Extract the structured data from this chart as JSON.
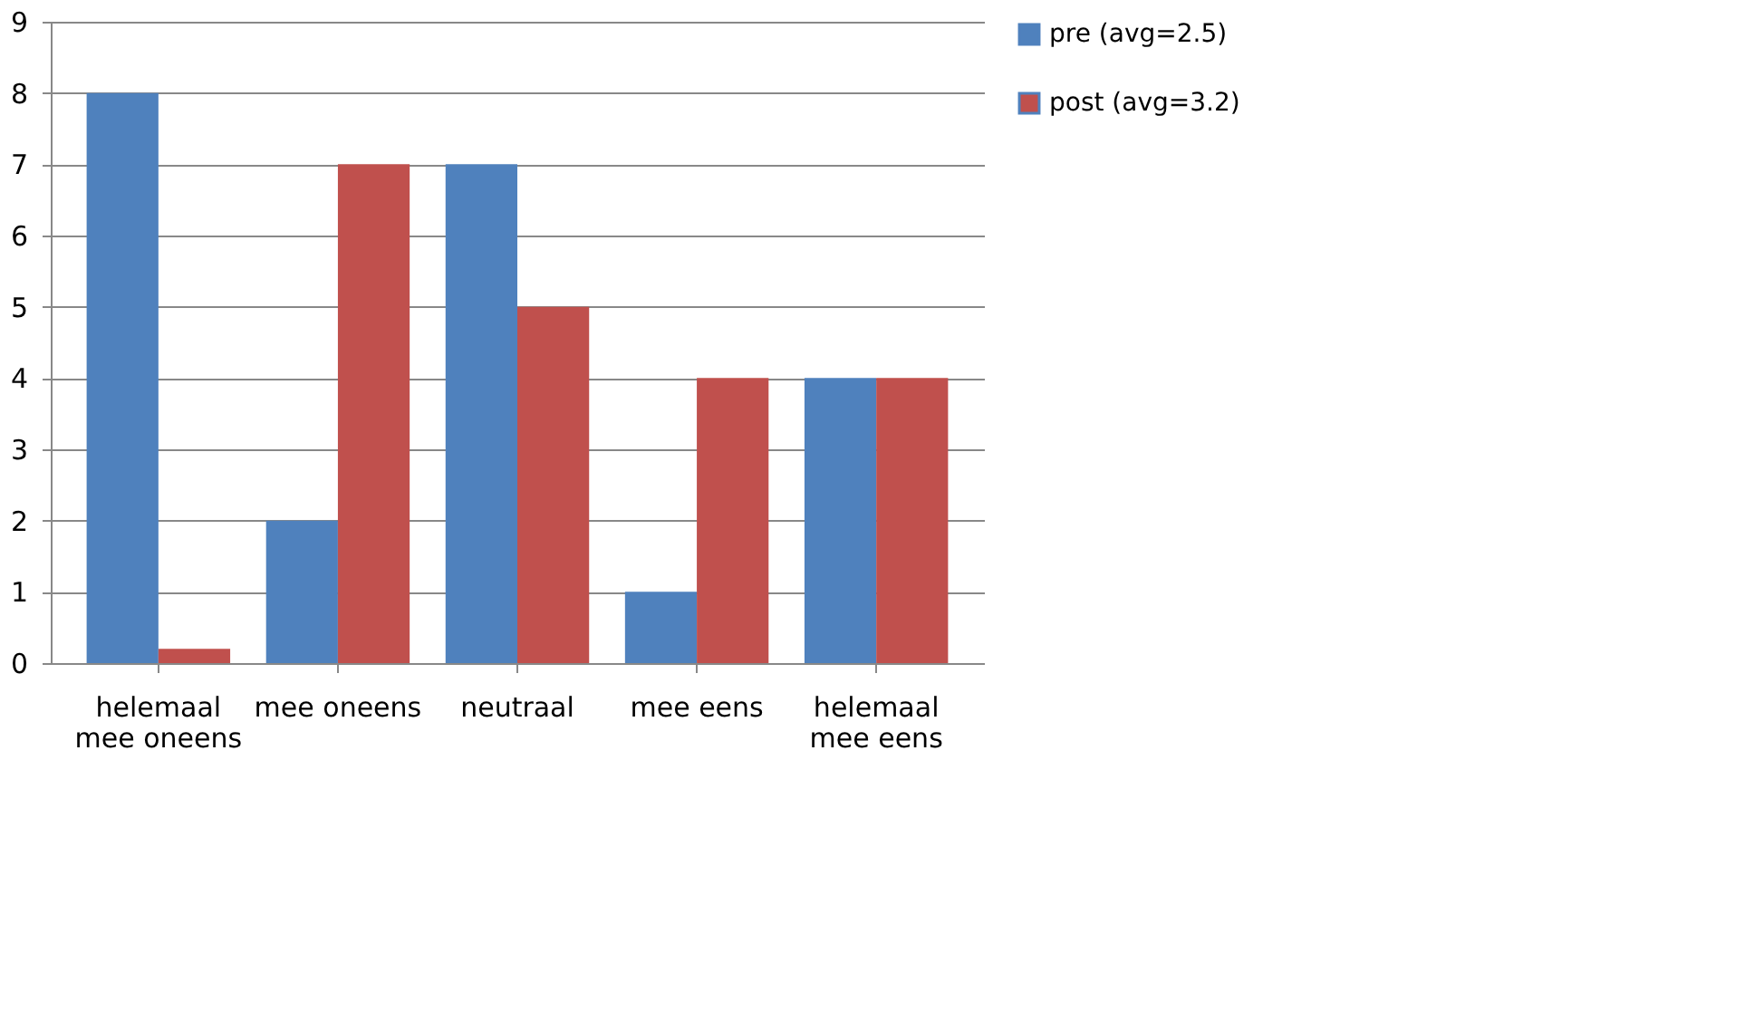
{
  "chart_data": {
    "type": "bar",
    "categories": [
      "helemaal mee oneens",
      "mee oneens",
      "neutraal",
      "mee eens",
      "helemaal mee eens"
    ],
    "series": [
      {
        "name": "pre (avg=2.5)",
        "color": "#4f81bd",
        "values": [
          8,
          2,
          7,
          1,
          4
        ]
      },
      {
        "name": "post (avg=3.2)",
        "color": "#c0504d",
        "values": [
          0.2,
          7,
          5,
          4,
          4
        ]
      }
    ],
    "ylim": [
      0,
      9
    ],
    "yticks": [
      0,
      1,
      2,
      3,
      4,
      5,
      6,
      7,
      8,
      9
    ],
    "grid": "y",
    "legend": "right"
  }
}
